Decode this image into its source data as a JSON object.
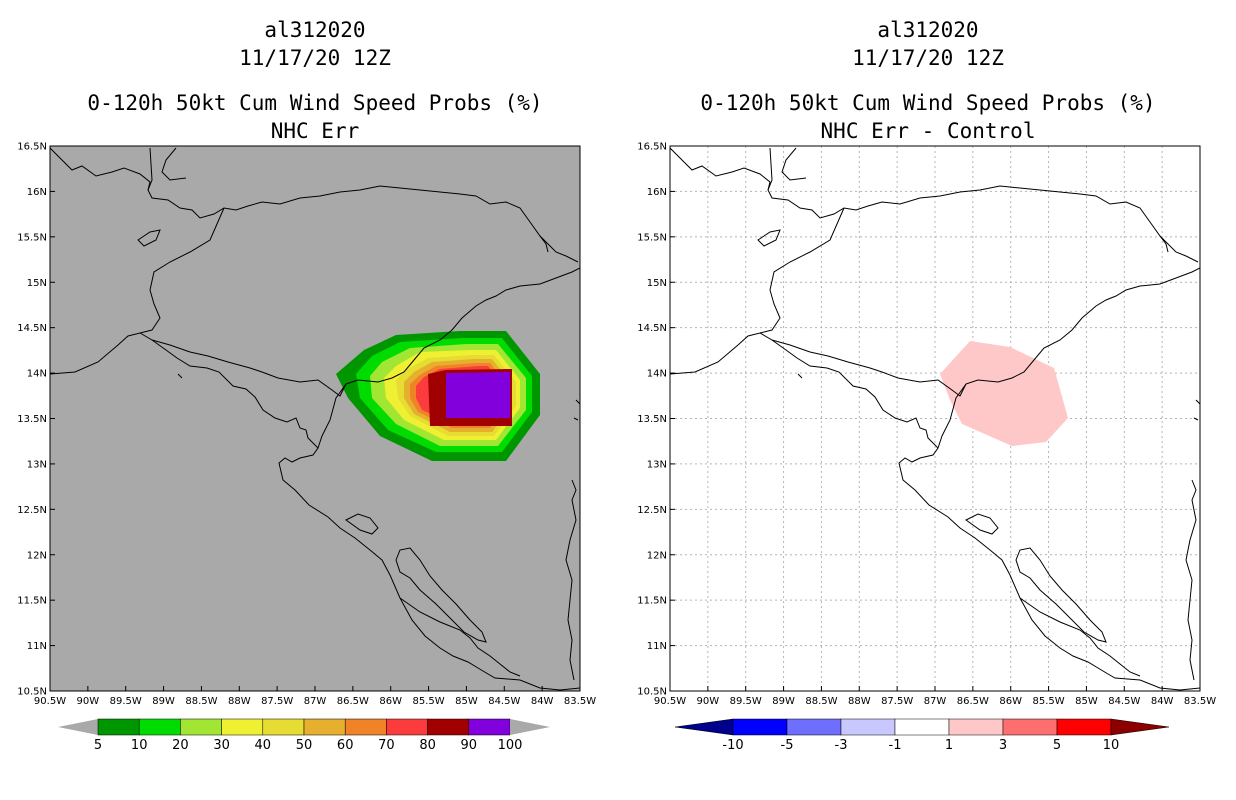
{
  "left_panel": {
    "storm_id": "al312020",
    "datetime": "11/17/20 12Z",
    "title": "0-120h 50kt Cum Wind Speed Probs (%)",
    "subtitle": "NHC Err",
    "background_color": "#a9a9a9",
    "colorbar": {
      "labels": [
        "5",
        "10",
        "20",
        "30",
        "40",
        "50",
        "60",
        "70",
        "80",
        "90",
        "100"
      ],
      "colors": [
        "#009600",
        "#00dc00",
        "#a0e632",
        "#f0f032",
        "#e6dc32",
        "#e6af2d",
        "#f08228",
        "#fa3c3c",
        "#a00000",
        "#8200dc"
      ]
    }
  },
  "right_panel": {
    "storm_id": "al312020",
    "datetime": "11/17/20 12Z",
    "title": "0-120h 50kt Cum Wind Speed Probs (%)",
    "subtitle": "NHC Err - Control",
    "background_color": "#ffffff",
    "colorbar": {
      "labels": [
        "-10",
        "-5",
        "-3",
        "-1",
        "1",
        "3",
        "5",
        "10"
      ],
      "colors": [
        "#00008c",
        "#0000ff",
        "#6e6eff",
        "#c8c8ff",
        "#ffffff",
        "#ffc8c8",
        "#ff6e6e",
        "#ff0000",
        "#8c0000"
      ]
    }
  },
  "map": {
    "lat_labels": [
      "16.5N",
      "16N",
      "15.5N",
      "15N",
      "14.5N",
      "14N",
      "13.5N",
      "13N",
      "12.5N",
      "12N",
      "11.5N",
      "11N",
      "10.5N"
    ],
    "lon_labels": [
      "90.5W",
      "90W",
      "89.5W",
      "89W",
      "88.5W",
      "88W",
      "87.5W",
      "87W",
      "86.5W",
      "86W",
      "85.5W",
      "85W",
      "84.5W",
      "84W",
      "83.5W"
    ]
  }
}
